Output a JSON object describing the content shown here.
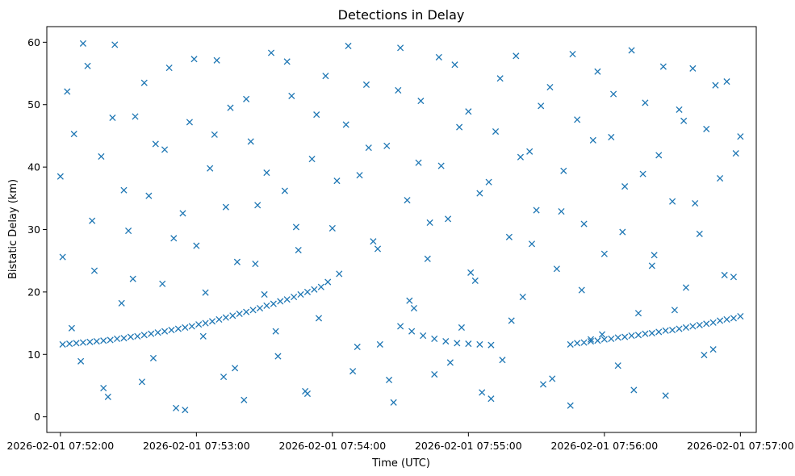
{
  "chart_data": {
    "type": "scatter",
    "title": "Detections in Delay",
    "xlabel": "Time (UTC)",
    "ylabel": "Bistatic Delay (km)",
    "x_ticks": [
      "2026-02-01 07:52:00",
      "2026-02-01 07:53:00",
      "2026-02-01 07:54:00",
      "2026-02-01 07:55:00",
      "2026-02-01 07:56:00",
      "2026-02-01 07:57:00"
    ],
    "y_ticks": [
      0,
      10,
      20,
      30,
      40,
      50,
      60
    ],
    "xlim": [
      "2026-02-01 07:51:54",
      "2026-02-01 07:57:07"
    ],
    "ylim": [
      -2.5,
      62.5
    ],
    "grid": false,
    "marker": "x",
    "color": "#1f77b4",
    "series": [
      {
        "kind": "clutter",
        "x": [
          "07:52:00",
          "07:52:03",
          "07:52:06",
          "07:52:09",
          "07:52:12",
          "07:52:15",
          "07:52:18",
          "07:52:21",
          "07:52:24",
          "07:52:27",
          "07:52:30",
          "07:52:33",
          "07:52:36",
          "07:52:39",
          "07:52:42",
          "07:52:45",
          "07:52:48",
          "07:52:51",
          "07:52:54",
          "07:52:57",
          "07:53:00",
          "07:53:03",
          "07:53:06",
          "07:53:09",
          "07:53:12",
          "07:53:15",
          "07:53:18",
          "07:53:21",
          "07:53:24",
          "07:53:27",
          "07:53:30",
          "07:53:33",
          "07:53:36",
          "07:53:39",
          "07:53:42",
          "07:53:45",
          "07:53:48",
          "07:53:51",
          "07:53:54",
          "07:53:57",
          "07:54:00",
          "07:54:03",
          "07:54:06",
          "07:54:09",
          "07:54:12",
          "07:54:15",
          "07:54:18",
          "07:54:21",
          "07:54:24",
          "07:54:27",
          "07:54:30",
          "07:54:33",
          "07:54:36",
          "07:54:39",
          "07:54:42",
          "07:54:45",
          "07:54:48",
          "07:54:51",
          "07:54:54",
          "07:54:57",
          "07:55:00",
          "07:55:03",
          "07:55:06",
          "07:55:09",
          "07:55:12",
          "07:55:15",
          "07:55:18",
          "07:55:21",
          "07:55:24",
          "07:55:27",
          "07:55:30",
          "07:55:33",
          "07:55:36",
          "07:55:39",
          "07:55:42",
          "07:55:45",
          "07:55:48",
          "07:55:51",
          "07:55:54",
          "07:55:57",
          "07:56:00",
          "07:56:03",
          "07:56:06",
          "07:56:09",
          "07:56:12",
          "07:56:15",
          "07:56:18",
          "07:56:21",
          "07:56:24",
          "07:56:27",
          "07:56:30",
          "07:56:33",
          "07:56:36",
          "07:56:39",
          "07:56:42",
          "07:56:45",
          "07:56:48",
          "07:56:51",
          "07:56:54",
          "07:56:57",
          "07:57:00"
        ],
        "y": [
          38.5,
          52.1,
          45.3,
          8.9,
          56.2,
          23.4,
          41.7,
          3.2,
          59.6,
          18.2,
          29.8,
          48.1,
          5.6,
          35.4,
          43.7,
          21.3,
          55.9,
          1.4,
          32.6,
          47.2,
          27.4,
          12.9,
          39.8,
          57.1,
          6.4,
          49.5,
          24.8,
          2.7,
          44.1,
          33.9,
          19.6,
          58.3,
          9.7,
          36.2,
          51.4,
          26.7,
          4.1,
          41.3,
          15.8,
          54.6,
          30.2,
          22.9,
          46.8,
          7.3,
          38.7,
          53.2,
          28.1,
          11.6,
          43.4,
          2.3,
          59.1,
          34.7,
          17.4,
          50.6,
          25.3,
          6.8,
          40.2,
          31.7,
          56.4,
          14.3,
          48.9,
          21.8,
          3.9,
          37.6,
          45.7,
          9.1,
          28.8,
          57.8,
          19.2,
          42.5,
          33.1,
          5.2,
          52.8,
          23.7,
          39.4,
          1.8,
          47.6,
          30.9,
          12.4,
          55.3,
          26.1,
          44.8,
          8.2,
          36.9,
          58.7,
          16.6,
          50.3,
          24.2,
          41.9,
          3.4,
          34.5,
          49.2,
          20.7,
          55.8,
          29.3,
          46.1,
          10.8,
          38.2,
          53.7,
          22.4,
          44.9
        ]
      },
      {
        "kind": "clutter",
        "x": [
          "07:52:01",
          "07:52:05",
          "07:52:10",
          "07:52:14",
          "07:52:19",
          "07:52:23",
          "07:52:28",
          "07:52:32",
          "07:52:37",
          "07:52:41",
          "07:52:46",
          "07:52:50",
          "07:52:55",
          "07:52:59",
          "07:53:04",
          "07:53:08",
          "07:53:13",
          "07:53:17",
          "07:53:22",
          "07:53:26",
          "07:53:31",
          "07:53:35",
          "07:53:40",
          "07:53:44",
          "07:53:49",
          "07:53:53",
          "07:53:58",
          "07:54:02",
          "07:54:07",
          "07:54:11",
          "07:54:16",
          "07:54:20",
          "07:54:25",
          "07:54:29",
          "07:54:34",
          "07:54:38",
          "07:54:43",
          "07:54:47",
          "07:54:52",
          "07:54:56",
          "07:55:01",
          "07:55:05",
          "07:55:10",
          "07:55:14",
          "07:55:19",
          "07:55:23",
          "07:55:28",
          "07:55:32",
          "07:55:37",
          "07:55:41",
          "07:55:46",
          "07:55:50",
          "07:55:55",
          "07:55:59",
          "07:56:04",
          "07:56:08",
          "07:56:13",
          "07:56:17",
          "07:56:22",
          "07:56:26",
          "07:56:31",
          "07:56:35",
          "07:56:40",
          "07:56:44",
          "07:56:49",
          "07:56:53",
          "07:56:58"
        ],
        "y": [
          25.6,
          14.2,
          59.8,
          31.4,
          4.6,
          47.9,
          36.3,
          22.1,
          53.5,
          9.4,
          42.8,
          28.6,
          1.1,
          57.3,
          19.9,
          45.2,
          33.6,
          7.8,
          50.9,
          24.5,
          39.1,
          13.7,
          56.9,
          30.4,
          3.7,
          48.4,
          21.6,
          37.8,
          59.4,
          11.2,
          43.1,
          26.9,
          5.9,
          52.3,
          18.6,
          40.7,
          31.1,
          57.6,
          8.7,
          46.4,
          23.1,
          35.8,
          2.9,
          54.2,
          15.4,
          41.6,
          27.7,
          49.8,
          6.1,
          32.9,
          58.1,
          20.3,
          44.3,
          13.2,
          51.7,
          29.6,
          4.3,
          38.9,
          25.9,
          56.1,
          17.1,
          47.4,
          34.2,
          9.9,
          53.1,
          22.7,
          42.2
        ]
      },
      {
        "kind": "track",
        "x": [
          "07:52:01",
          "07:52:04",
          "07:52:07",
          "07:52:10",
          "07:52:13",
          "07:52:16",
          "07:52:19",
          "07:52:22",
          "07:52:25",
          "07:52:28",
          "07:52:31",
          "07:52:34",
          "07:52:37",
          "07:52:40",
          "07:52:43",
          "07:52:46",
          "07:52:49",
          "07:52:52",
          "07:52:55",
          "07:52:58",
          "07:53:01",
          "07:53:04",
          "07:53:07",
          "07:53:10",
          "07:53:13",
          "07:53:16",
          "07:53:19",
          "07:53:22",
          "07:53:25",
          "07:53:28",
          "07:53:31",
          "07:53:34",
          "07:53:37",
          "07:53:40",
          "07:53:43",
          "07:53:46",
          "07:53:49",
          "07:53:52",
          "07:53:55"
        ],
        "y": [
          11.6,
          11.7,
          11.8,
          11.9,
          12.0,
          12.1,
          12.2,
          12.3,
          12.5,
          12.6,
          12.8,
          12.9,
          13.1,
          13.3,
          13.5,
          13.7,
          13.9,
          14.1,
          14.3,
          14.5,
          14.8,
          15.0,
          15.3,
          15.6,
          15.9,
          16.2,
          16.5,
          16.8,
          17.1,
          17.4,
          17.8,
          18.1,
          18.5,
          18.8,
          19.2,
          19.6,
          20.0,
          20.4,
          20.8
        ]
      },
      {
        "kind": "track",
        "x": [
          "07:54:30",
          "07:54:35",
          "07:54:40",
          "07:54:45",
          "07:54:50",
          "07:54:55",
          "07:55:00",
          "07:55:05",
          "07:55:10",
          "07:55:45",
          "07:55:48",
          "07:55:51",
          "07:55:54",
          "07:55:57",
          "07:56:00",
          "07:56:03",
          "07:56:06",
          "07:56:09",
          "07:56:12",
          "07:56:15",
          "07:56:18",
          "07:56:21",
          "07:56:24",
          "07:56:27",
          "07:56:30",
          "07:56:33",
          "07:56:36",
          "07:56:39",
          "07:56:42",
          "07:56:45",
          "07:56:48",
          "07:56:51",
          "07:56:54",
          "07:56:57",
          "07:57:00"
        ],
        "y": [
          14.5,
          13.7,
          13.0,
          12.5,
          12.1,
          11.8,
          11.7,
          11.6,
          11.5,
          11.6,
          11.8,
          11.9,
          12.1,
          12.2,
          12.4,
          12.5,
          12.7,
          12.8,
          13.0,
          13.1,
          13.3,
          13.4,
          13.6,
          13.8,
          13.9,
          14.1,
          14.3,
          14.5,
          14.7,
          14.9,
          15.1,
          15.4,
          15.6,
          15.8,
          16.1
        ]
      }
    ]
  }
}
